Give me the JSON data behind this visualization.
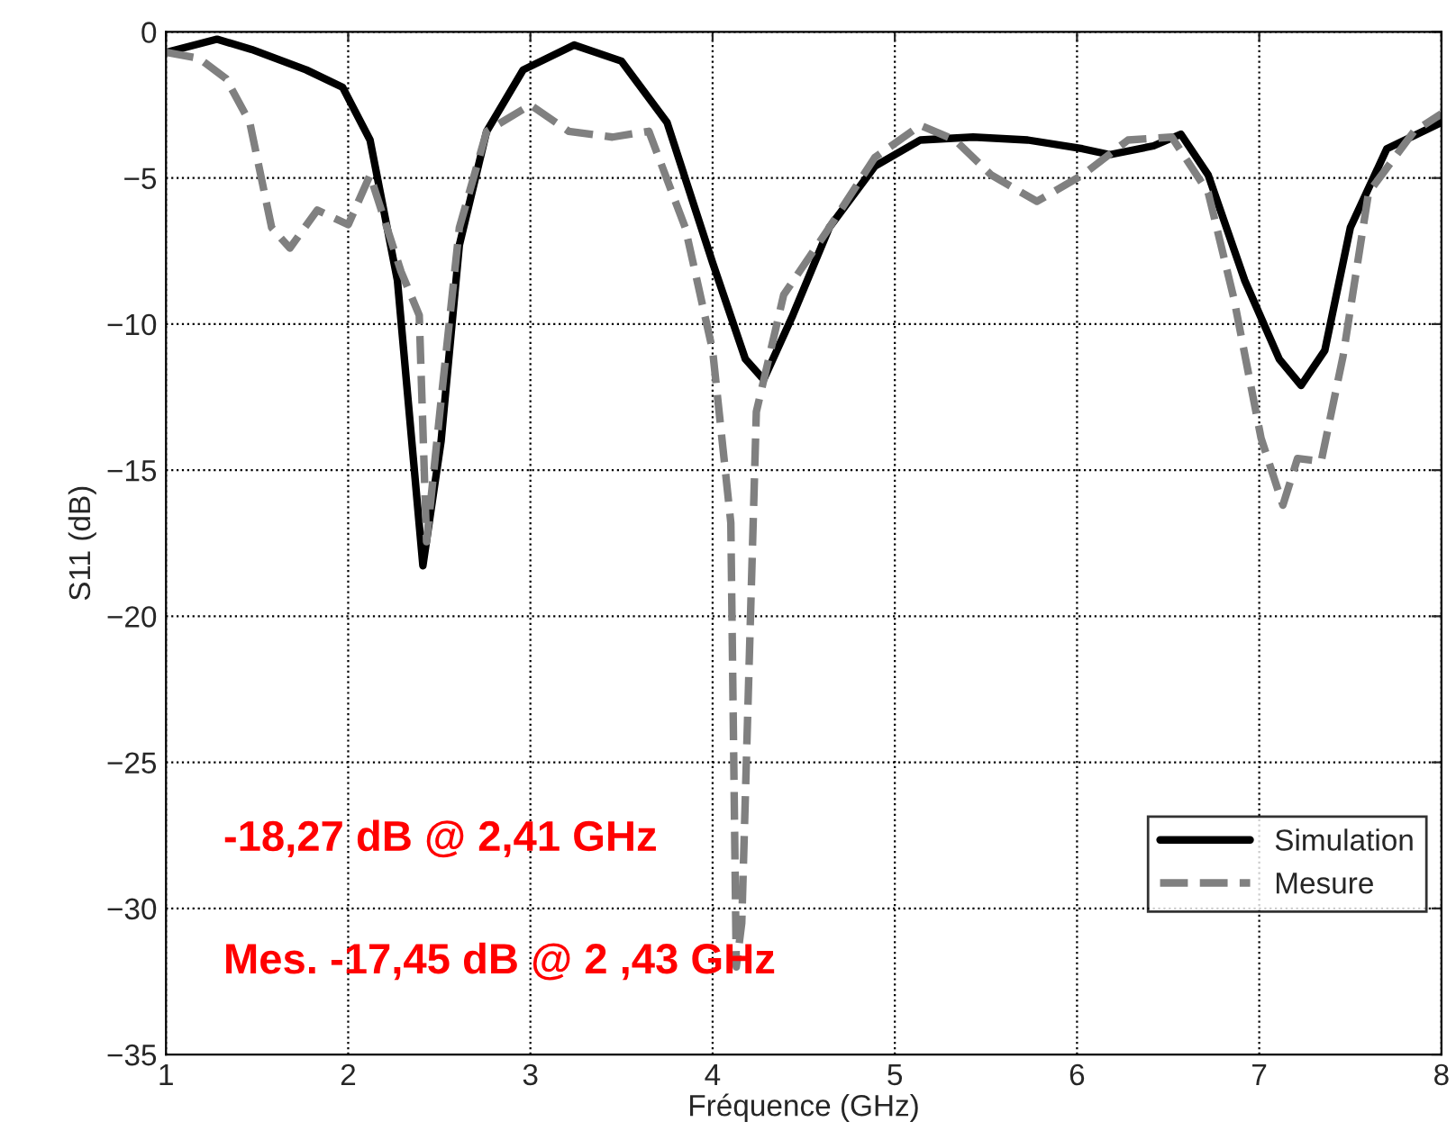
{
  "chart_data": {
    "type": "line",
    "xlabel": "Fréquence (GHz)",
    "ylabel": "S11 (dB)",
    "xlim": [
      1,
      8
    ],
    "ylim": [
      -35,
      0
    ],
    "xticks": [
      1,
      2,
      3,
      4,
      5,
      6,
      7,
      8
    ],
    "yticks": [
      -35,
      -30,
      -25,
      -20,
      -15,
      -10,
      -5,
      0
    ],
    "grid": true,
    "legend": "bottom right",
    "series": [
      {
        "name": "Simulation",
        "color": "#000000",
        "line_style": "solid",
        "x": [
          1.0,
          1.28,
          1.47,
          1.77,
          1.97,
          2.12,
          2.27,
          2.41,
          2.51,
          2.61,
          2.76,
          2.96,
          3.24,
          3.5,
          3.75,
          4.0,
          4.18,
          4.28,
          4.44,
          4.64,
          4.89,
          5.14,
          5.43,
          5.73,
          6.03,
          6.18,
          6.42,
          6.57,
          6.72,
          6.92,
          7.11,
          7.23,
          7.36,
          7.5,
          7.7,
          8.0
        ],
        "values": [
          -0.7,
          -0.25,
          -0.6,
          -1.3,
          -1.9,
          -3.7,
          -8.5,
          -18.27,
          -14,
          -7.3,
          -3.4,
          -1.3,
          -0.45,
          -1,
          -3.1,
          -7.9,
          -11.2,
          -11.9,
          -9.7,
          -6.7,
          -4.6,
          -3.7,
          -3.6,
          -3.7,
          -4.0,
          -4.2,
          -3.9,
          -3.5,
          -4.9,
          -8.5,
          -11.2,
          -12.1,
          -10.9,
          -6.7,
          -4.0,
          -3.1
        ]
      },
      {
        "name": "Mesure",
        "color": "#808080",
        "line_style": "dashed",
        "x": [
          1.0,
          1.18,
          1.33,
          1.46,
          1.58,
          1.68,
          1.83,
          2.0,
          2.12,
          2.29,
          2.39,
          2.43,
          2.51,
          2.61,
          2.76,
          3.0,
          3.21,
          3.45,
          3.65,
          3.85,
          4.0,
          4.1,
          4.13,
          4.16,
          4.24,
          4.39,
          4.64,
          4.89,
          5.14,
          5.33,
          5.53,
          5.78,
          6.03,
          6.28,
          6.52,
          6.72,
          6.86,
          7.01,
          7.13,
          7.21,
          7.34,
          7.46,
          7.6,
          7.85,
          8.0
        ],
        "values": [
          -0.7,
          -0.9,
          -1.6,
          -3.1,
          -6.7,
          -7.4,
          -6.1,
          -6.6,
          -4.9,
          -8.2,
          -9.7,
          -17.45,
          -12.6,
          -6.7,
          -3.4,
          -2.5,
          -3.4,
          -3.6,
          -3.4,
          -6.7,
          -10.9,
          -16.8,
          -32,
          -30.5,
          -13,
          -9,
          -6.7,
          -4.3,
          -3.2,
          -3.7,
          -4.9,
          -5.8,
          -4.9,
          -3.7,
          -3.6,
          -5.5,
          -9.1,
          -13.9,
          -16.2,
          -14.6,
          -14.7,
          -11.1,
          -5.5,
          -3.4,
          -2.8
        ]
      }
    ],
    "annotations": [
      "-18,27 dB @ 2,41 GHz",
      "Mes. -17,45 dB @ 2 ,43 GHz"
    ]
  }
}
